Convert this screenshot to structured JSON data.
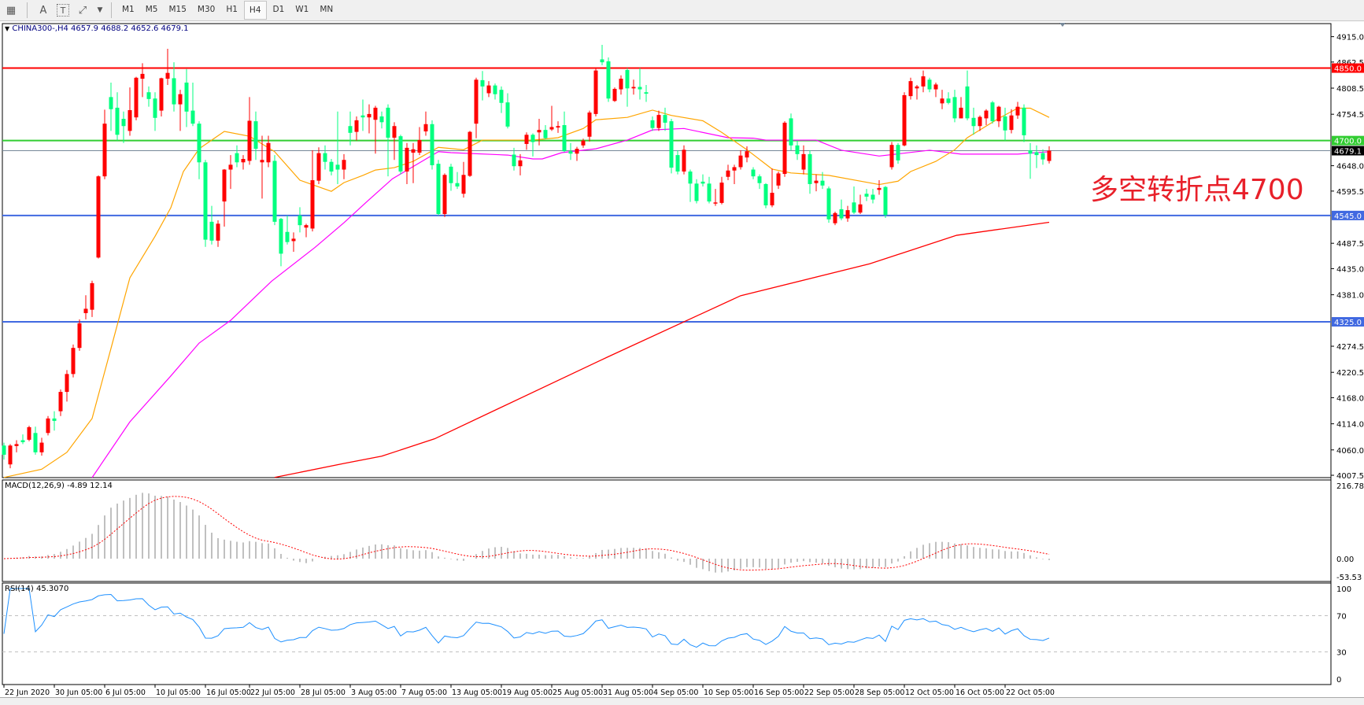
{
  "toolbar": {
    "icons": [
      "grid-properties-icon",
      "text-icon",
      "text-label-icon",
      "arrows-icon",
      "dropdown-arrow-icon"
    ],
    "text_icon": "A",
    "label_icon": "T",
    "timeframes": [
      "M1",
      "M5",
      "M15",
      "M30",
      "H1",
      "H4",
      "D1",
      "W1",
      "MN"
    ],
    "active_timeframe": "H4"
  },
  "chart": {
    "header": "CHINA300-,H4  4657.9 4688.2 4652.6 4679.1",
    "annotation": "多空转折点4700",
    "colors": {
      "up": "#ff0000",
      "down": "#00ff7f",
      "ma_fast": "#ffa500",
      "ma_mid": "#ff00ff",
      "ma_slow": "#ff0000",
      "rsi": "#1e90ff",
      "macd_hist": "#c0c0c0",
      "macd_signal": "#ff0000"
    }
  },
  "chart_data": {
    "type": "candlestick",
    "symbol": "CHINA300-",
    "timeframe": "H4",
    "ylim": [
      4007.5,
      4915.0
    ],
    "price_ticks": [
      "4915.0",
      "4862.5",
      "4808.5",
      "4754.5",
      "4648.0",
      "4595.5",
      "4487.5",
      "4435.0",
      "4381.0",
      "4274.5",
      "4220.5",
      "4168.0",
      "4114.0",
      "4060.0",
      "4007.5"
    ],
    "price_tick_values": [
      4915.0,
      4862.5,
      4808.5,
      4754.5,
      4648.0,
      4595.5,
      4487.5,
      4435.0,
      4381.0,
      4274.5,
      4220.5,
      4168.0,
      4114.0,
      4060.0,
      4007.5
    ],
    "hlines": [
      {
        "price": 4850.0,
        "label": "4850.0",
        "color": "#ff0000"
      },
      {
        "price": 4700.0,
        "label": "4700.0",
        "color": "#32cd32"
      },
      {
        "price": 4545.0,
        "label": "4545.0",
        "color": "#4169e1"
      },
      {
        "price": 4325.0,
        "label": "4325.0",
        "color": "#4169e1"
      }
    ],
    "current_price": {
      "price": 4679.1,
      "label": "4679.1",
      "color": "#778899"
    },
    "time_labels": [
      "22 Jun 2020",
      "30 Jun 05:00",
      "6 Jul 05:00",
      "10 Jul 05:00",
      "16 Jul 05:00",
      "22 Jul 05:00",
      "28 Jul 05:00",
      "3 Aug 05:00",
      "7 Aug 05:00",
      "13 Aug 05:00",
      "19 Aug 05:00",
      "25 Aug 05:00",
      "31 Aug 05:00",
      "4 Sep 05:00",
      "10 Sep 05:00",
      "16 Sep 05:00",
      "22 Sep 05:00",
      "28 Sep 05:00",
      "12 Oct 05:00",
      "16 Oct 05:00",
      "22 Oct 05:00"
    ],
    "time_label_bars": [
      0,
      8,
      16,
      24,
      32,
      39,
      47,
      55,
      63,
      71,
      79,
      87,
      95,
      103,
      111,
      119,
      127,
      135,
      143,
      151,
      159
    ],
    "ohlc": [
      [
        4069,
        4075,
        4040,
        4050
      ],
      [
        4030,
        4072,
        4022,
        4069
      ],
      [
        4068,
        4080,
        4055,
        4072
      ],
      [
        4080,
        4092,
        4072,
        4076
      ],
      [
        4081,
        4110,
        4078,
        4107
      ],
      [
        4095,
        4108,
        4050,
        4055
      ],
      [
        4055,
        4085,
        4048,
        4075
      ],
      [
        4095,
        4130,
        4090,
        4125
      ],
      [
        4125,
        4140,
        4100,
        4120
      ],
      [
        4140,
        4185,
        4130,
        4180
      ],
      [
        4180,
        4225,
        4160,
        4217
      ],
      [
        4217,
        4278,
        4210,
        4271
      ],
      [
        4271,
        4330,
        4265,
        4322
      ],
      [
        4343,
        4380,
        4330,
        4352
      ],
      [
        4350,
        4410,
        4335,
        4405
      ],
      [
        4458,
        4628,
        4456,
        4626
      ],
      [
        4626,
        4764,
        4620,
        4735
      ],
      [
        4790,
        4820,
        4720,
        4765
      ],
      [
        4768,
        4800,
        4700,
        4712
      ],
      [
        4745,
        4760,
        4695,
        4730
      ],
      [
        4720,
        4810,
        4710,
        4763
      ],
      [
        4748,
        4832,
        4742,
        4830
      ],
      [
        4828,
        4860,
        4790,
        4838
      ],
      [
        4800,
        4812,
        4770,
        4786
      ],
      [
        4787,
        4800,
        4720,
        4747
      ],
      [
        4762,
        4830,
        4750,
        4829
      ],
      [
        4828,
        4890,
        4815,
        4840
      ],
      [
        4829,
        4862,
        4760,
        4775
      ],
      [
        4775,
        4805,
        4720,
        4796
      ],
      [
        4820,
        4848,
        4728,
        4760
      ],
      [
        4762,
        4820,
        4730,
        4735
      ],
      [
        4735,
        4740,
        4620,
        4655
      ],
      [
        4655,
        4660,
        4480,
        4495
      ],
      [
        4532,
        4565,
        4485,
        4493
      ],
      [
        4493,
        4535,
        4480,
        4528
      ],
      [
        4574,
        4641,
        4522,
        4640
      ],
      [
        4640,
        4670,
        4600,
        4650
      ],
      [
        4674,
        4690,
        4645,
        4655
      ],
      [
        4655,
        4670,
        4640,
        4662
      ],
      [
        4658,
        4790,
        4650,
        4741
      ],
      [
        4740,
        4760,
        4660,
        4683
      ],
      [
        4655,
        4710,
        4580,
        4660
      ],
      [
        4655,
        4710,
        4645,
        4695
      ],
      [
        4658,
        4670,
        4525,
        4532
      ],
      [
        4538,
        4540,
        4440,
        4466
      ],
      [
        4511,
        4545,
        4485,
        4490
      ],
      [
        4492,
        4510,
        4470,
        4497
      ],
      [
        4545,
        4562,
        4510,
        4525
      ],
      [
        4520,
        4528,
        4500,
        4525
      ],
      [
        4518,
        4680,
        4512,
        4618
      ],
      [
        4617,
        4686,
        4610,
        4674
      ],
      [
        4674,
        4690,
        4640,
        4656
      ],
      [
        4656,
        4662,
        4628,
        4636
      ],
      [
        4650,
        4760,
        4610,
        4640
      ],
      [
        4640,
        4672,
        4620,
        4660
      ],
      [
        4730,
        4760,
        4690,
        4716
      ],
      [
        4718,
        4750,
        4700,
        4742
      ],
      [
        4752,
        4785,
        4720,
        4748
      ],
      [
        4748,
        4775,
        4715,
        4755
      ],
      [
        4743,
        4772,
        4673,
        4768
      ],
      [
        4750,
        4760,
        4725,
        4738
      ],
      [
        4768,
        4775,
        4626,
        4706
      ],
      [
        4706,
        4738,
        4660,
        4730
      ],
      [
        4709,
        4712,
        4630,
        4636
      ],
      [
        4636,
        4695,
        4610,
        4685
      ],
      [
        4675,
        4695,
        4612,
        4682
      ],
      [
        4675,
        4728,
        4670,
        4701
      ],
      [
        4719,
        4760,
        4710,
        4734
      ],
      [
        4734,
        4742,
        4640,
        4649
      ],
      [
        4652,
        4660,
        4545,
        4548
      ],
      [
        4548,
        4632,
        4542,
        4629
      ],
      [
        4646,
        4652,
        4596,
        4612
      ],
      [
        4612,
        4635,
        4600,
        4605
      ],
      [
        4590,
        4656,
        4582,
        4629
      ],
      [
        4627,
        4720,
        4625,
        4718
      ],
      [
        4735,
        4830,
        4705,
        4826
      ],
      [
        4825,
        4844,
        4783,
        4812
      ],
      [
        4798,
        4823,
        4790,
        4814
      ],
      [
        4814,
        4818,
        4785,
        4796
      ],
      [
        4805,
        4812,
        4757,
        4778
      ],
      [
        4779,
        4798,
        4725,
        4729
      ],
      [
        4671,
        4685,
        4638,
        4647
      ],
      [
        4647,
        4672,
        4628,
        4659
      ],
      [
        4693,
        4717,
        4681,
        4712
      ],
      [
        4712,
        4715,
        4667,
        4697
      ],
      [
        4717,
        4745,
        4690,
        4722
      ],
      [
        4722,
        4732,
        4703,
        4705
      ],
      [
        4723,
        4772,
        4720,
        4728
      ],
      [
        4727,
        4740,
        4716,
        4730
      ],
      [
        4732,
        4760,
        4676,
        4678
      ],
      [
        4678,
        4695,
        4660,
        4673
      ],
      [
        4673,
        4687,
        4658,
        4683
      ],
      [
        4690,
        4704,
        4685,
        4700
      ],
      [
        4708,
        4762,
        4698,
        4758
      ],
      [
        4755,
        4850,
        4750,
        4845
      ],
      [
        4868,
        4898,
        4856,
        4862
      ],
      [
        4864,
        4872,
        4780,
        4787
      ],
      [
        4782,
        4810,
        4780,
        4807
      ],
      [
        4806,
        4835,
        4795,
        4828
      ],
      [
        4846,
        4850,
        4770,
        4808
      ],
      [
        4808,
        4826,
        4795,
        4811
      ],
      [
        4811,
        4850,
        4785,
        4806
      ],
      [
        4800,
        4815,
        4780,
        4797
      ],
      [
        4742,
        4750,
        4720,
        4726
      ],
      [
        4726,
        4762,
        4720,
        4753
      ],
      [
        4753,
        4768,
        4720,
        4737
      ],
      [
        4740,
        4745,
        4632,
        4644
      ],
      [
        4670,
        4680,
        4630,
        4636
      ],
      [
        4636,
        4690,
        4630,
        4681
      ],
      [
        4636,
        4640,
        4573,
        4611
      ],
      [
        4611,
        4620,
        4570,
        4575
      ],
      [
        4615,
        4630,
        4605,
        4611
      ],
      [
        4611,
        4625,
        4570,
        4574
      ],
      [
        4571,
        4600,
        4565,
        4572
      ],
      [
        4571,
        4625,
        4568,
        4613
      ],
      [
        4625,
        4650,
        4618,
        4638
      ],
      [
        4638,
        4650,
        4610,
        4645
      ],
      [
        4645,
        4680,
        4640,
        4669
      ],
      [
        4665,
        4688,
        4655,
        4678
      ],
      [
        4640,
        4645,
        4620,
        4626
      ],
      [
        4626,
        4630,
        4600,
        4612
      ],
      [
        4610,
        4612,
        4560,
        4566
      ],
      [
        4566,
        4642,
        4562,
        4592
      ],
      [
        4607,
        4636,
        4600,
        4632
      ],
      [
        4631,
        4740,
        4625,
        4737
      ],
      [
        4746,
        4756,
        4680,
        4690
      ],
      [
        4690,
        4700,
        4660,
        4672
      ],
      [
        4640,
        4690,
        4630,
        4672
      ],
      [
        4672,
        4680,
        4590,
        4610
      ],
      [
        4612,
        4630,
        4595,
        4617
      ],
      [
        4617,
        4635,
        4600,
        4607
      ],
      [
        4601,
        4605,
        4530,
        4537
      ],
      [
        4529,
        4553,
        4525,
        4550
      ],
      [
        4558,
        4578,
        4535,
        4539
      ],
      [
        4539,
        4565,
        4532,
        4556
      ],
      [
        4572,
        4605,
        4548,
        4551
      ],
      [
        4551,
        4588,
        4548,
        4568
      ],
      [
        4590,
        4600,
        4575,
        4584
      ],
      [
        4588,
        4600,
        4570,
        4578
      ],
      [
        4598,
        4618,
        4588,
        4602
      ],
      [
        4604,
        4606,
        4540,
        4546
      ],
      [
        4645,
        4697,
        4640,
        4691
      ],
      [
        4691,
        4695,
        4652,
        4659
      ],
      [
        4690,
        4800,
        4688,
        4794
      ],
      [
        4792,
        4830,
        4785,
        4823
      ],
      [
        4808,
        4815,
        4785,
        4812
      ],
      [
        4812,
        4845,
        4800,
        4833
      ],
      [
        4826,
        4830,
        4800,
        4806
      ],
      [
        4806,
        4820,
        4790,
        4816
      ],
      [
        4777,
        4805,
        4765,
        4787
      ],
      [
        4787,
        4800,
        4775,
        4778
      ],
      [
        4790,
        4805,
        4738,
        4746
      ],
      [
        4746,
        4790,
        4746,
        4768
      ],
      [
        4812,
        4845,
        4742,
        4746
      ],
      [
        4747,
        4768,
        4712,
        4730
      ],
      [
        4730,
        4752,
        4720,
        4749
      ],
      [
        4746,
        4765,
        4732,
        4762
      ],
      [
        4779,
        4782,
        4735,
        4740
      ],
      [
        4740,
        4772,
        4728,
        4770
      ],
      [
        4750,
        4768,
        4700,
        4721
      ],
      [
        4722,
        4765,
        4715,
        4752
      ],
      [
        4752,
        4780,
        4745,
        4770
      ],
      [
        4768,
        4775,
        4697,
        4711
      ],
      [
        4680,
        4695,
        4621,
        4673
      ],
      [
        4676,
        4690,
        4643,
        4670
      ],
      [
        4674,
        4682,
        4650,
        4661
      ],
      [
        4657.9,
        4688.2,
        4652.6,
        4679.1
      ]
    ],
    "ma_fast": [
      [
        0,
        4003
      ],
      [
        6,
        4020
      ],
      [
        10,
        4055
      ],
      [
        14,
        4125
      ],
      [
        17,
        4270
      ],
      [
        20,
        4416
      ],
      [
        24,
        4502
      ],
      [
        26.5,
        4561
      ],
      [
        28.5,
        4636
      ],
      [
        31,
        4683
      ],
      [
        35,
        4719
      ],
      [
        39,
        4709
      ],
      [
        43,
        4677
      ],
      [
        47,
        4618
      ],
      [
        52,
        4595
      ],
      [
        54,
        4613
      ],
      [
        57,
        4628
      ],
      [
        59,
        4639
      ],
      [
        62,
        4644
      ],
      [
        65,
        4657
      ],
      [
        69,
        4686
      ],
      [
        73,
        4681
      ],
      [
        76,
        4701
      ],
      [
        81,
        4701
      ],
      [
        84,
        4701
      ],
      [
        88,
        4706
      ],
      [
        92,
        4725
      ],
      [
        94,
        4743
      ],
      [
        99,
        4748
      ],
      [
        103,
        4763
      ],
      [
        106,
        4752
      ],
      [
        111,
        4741
      ],
      [
        114,
        4717
      ],
      [
        118,
        4681
      ],
      [
        122,
        4641
      ],
      [
        125,
        4633
      ],
      [
        131,
        4628
      ],
      [
        139,
        4609
      ],
      [
        142,
        4616
      ],
      [
        144,
        4636
      ],
      [
        148,
        4657
      ],
      [
        151,
        4681
      ],
      [
        153,
        4706
      ],
      [
        158,
        4746
      ],
      [
        161,
        4767
      ],
      [
        163,
        4767
      ],
      [
        166,
        4748
      ]
    ],
    "ma_mid": [
      [
        14,
        3998
      ],
      [
        20,
        4118
      ],
      [
        26.5,
        4213
      ],
      [
        31,
        4281
      ],
      [
        36,
        4328
      ],
      [
        42.5,
        4409
      ],
      [
        49.4,
        4479
      ],
      [
        54,
        4530
      ],
      [
        57.5,
        4572
      ],
      [
        61.7,
        4621
      ],
      [
        66,
        4654
      ],
      [
        69,
        4677
      ],
      [
        71,
        4675
      ],
      [
        80,
        4670
      ],
      [
        84,
        4662
      ],
      [
        85.5,
        4662
      ],
      [
        88.6,
        4675
      ],
      [
        94,
        4683
      ],
      [
        99,
        4701
      ],
      [
        103,
        4722
      ],
      [
        108,
        4725
      ],
      [
        115,
        4706
      ],
      [
        119,
        4705
      ],
      [
        121,
        4701
      ],
      [
        129,
        4701
      ],
      [
        133,
        4680
      ],
      [
        139,
        4668
      ],
      [
        147,
        4680
      ],
      [
        152,
        4672
      ],
      [
        161,
        4672
      ],
      [
        166,
        4677
      ]
    ],
    "ma_slow": [
      [
        43,
        4003
      ],
      [
        54,
        4032
      ],
      [
        60,
        4047
      ],
      [
        68.4,
        4083
      ],
      [
        96,
        4253
      ],
      [
        117,
        4379
      ],
      [
        137.5,
        4445
      ],
      [
        151.3,
        4504
      ],
      [
        166,
        4531
      ]
    ],
    "macd": {
      "label": "MACD(12,26,9) -4.89 12.14",
      "params": [
        12,
        26,
        9
      ],
      "main": -4.89,
      "signal": 12.14,
      "ylim": [
        -53.53,
        216.78
      ],
      "ticks": [
        "216.78",
        "0.00",
        "-53.53"
      ]
    },
    "rsi": {
      "label": "RSI(14) 45.3070",
      "period": 14,
      "value": 45.307,
      "ylim": [
        0,
        100
      ],
      "levels": [
        70,
        30
      ],
      "ticks": [
        "100",
        "70",
        "30",
        "0"
      ]
    }
  }
}
